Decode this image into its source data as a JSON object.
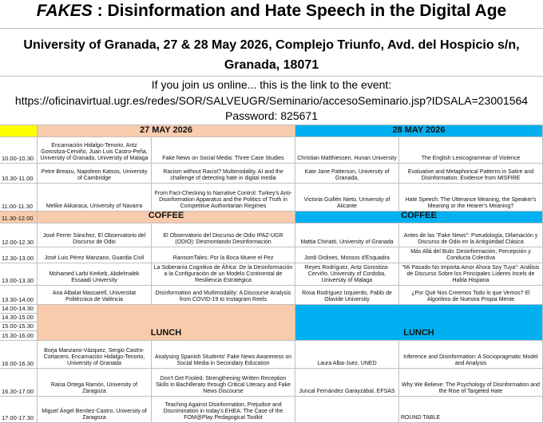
{
  "header": {
    "title_emphasis": "FAKES",
    "title": " : Disinformation and Hate Speech in the Digital Age",
    "venue": "University of Granada, 27 & 28 May 2026, Complejo Triunfo, Avd. del Hospicio s/n, Granada, 18071",
    "online": "If you join us online... this is the link to the event:",
    "link": "https://oficinavirtual.ugr.es/redes/SOR/SALVEUGR/Seminario/accesoSeminario.jsp?IDSALA=23001564",
    "password": "Password: 825671"
  },
  "schedule": {
    "days": [
      "27 MAY 2026",
      "28 MAY 2026"
    ],
    "rows": [
      {
        "time": "10.00-10.30",
        "sessions": [
          {
            "speaker": "Encarnación Hidalgo-Tenorio, Antz Gorostiza-Cerviño, Juan Luis Castro-Peña, University of Granada, University of Malaga",
            "title": "Fake News on Social Media: Three Case Studies"
          },
          {
            "speaker": "Christian Matthiessen, Hunan University",
            "title": "The English Lexicogrammar of Violence"
          }
        ]
      },
      {
        "time": "10.30-11.00",
        "sessions": [
          {
            "speaker": "Petre Breazu, Napoleon Katsos, University of Cambridge",
            "title": "Racism without Racist? Multimodality, AI and the challenge of detecting hate in digital media"
          },
          {
            "speaker": "Kate Jane Patterson, University of Granada,",
            "title": "Evaluative and Metaphorical Patterns in Satire and Disinformation: Evidence from MISFIRE"
          }
        ]
      },
      {
        "time": "11.00-11.30",
        "sessions": [
          {
            "speaker": "Melike Akkaraca, University of Navarra",
            "title": "From Fact-Checking to Narrative Control: Turkey's Anti-Disinformation Apparatus and the Politics of Truth in Competitive Authoritarian Regimes"
          },
          {
            "speaker": "Victoria Guillén Nieto, University of Alicante",
            "title": "Hate Speech: The Utterance Meaning, the Speaker's Meaning or the Hearer's Meaning?"
          }
        ]
      },
      {
        "times": [
          "11.30-12.00"
        ],
        "breaks": [
          "COFFEE",
          "COFFEE"
        ]
      },
      {
        "time": "12.00-12.30",
        "sessions": [
          {
            "speaker": "José Ferrer Sánchez, El Observatorio del Discurso de Odio",
            "title": "El Observatorio del Discurso de Odio IPAZ-UGR (ODIO): Desmontando Desinformación"
          },
          {
            "speaker": "Mattia Chiriatti, University of Granada",
            "title": "Antes de las \"Fake News\": Pseudología, Difamación y Discurso de Odio en la Antigüedad Clásica"
          }
        ]
      },
      {
        "time": "12.30-13.00",
        "sessions": [
          {
            "speaker": "José Luis Pérez Manzano, Guardia Civil",
            "title": "RansomTales: Por la Boca Muere el Pez"
          },
          {
            "speaker": "Jordi Ordines, Mossos d'Esquadra",
            "title": "Más Allá del Bulo: Desinformación, Percepción y Conducta Colectiva"
          }
        ]
      },
      {
        "time": "13.00-13.30",
        "sessions": [
          {
            "speaker": "Mohamed Larbi Kerkeb, Abdelmalek Essaadi University",
            "title": "La Soberanía Cognitiva de África: De la Desinformación a la Configuración de un Modelo Continental de Resiliencia Estratégica"
          },
          {
            "speaker": "Reyes Rodríguez, Antz Gorostiza-Cerviño, University of Cordoba, University of Malaga",
            "title": "\"Mi Pasado No Importa Amor Ahora Soy Tuya\": Análisis de Discurso Sobre los Principales Líderes Incels de Habla Hispana"
          }
        ]
      },
      {
        "time": "13.30-14.00",
        "sessions": [
          {
            "speaker": "Ana Albalat Mascarell, Universitat Politècnica de València",
            "title": "Disinformation and Multimodality: A Discourse Analysis from COVID-19 to Instagram Reels"
          },
          {
            "speaker": "Rosa Rodríguez Izquierdo, Pablo de Olavide University",
            "title": "¿Por Qué Nos Creemos Todo lo que Vemos? El Algoritmo de Nuestra Propia Mente"
          }
        ]
      },
      {
        "times": [
          "14.00-14.30",
          "14.30-15.00",
          "15.00-15.30",
          "15.30-16.00"
        ],
        "breaks": [
          "LUNCH",
          "LUNCH"
        ]
      },
      {
        "time": "16.00-16.30",
        "sessions": [
          {
            "speaker": "Borja Manzano-Vázquez, Sergio Castro-Cortacero, Encarnación Hidalgo-Tenorio, University of Granada",
            "title": "Analysing Spanish Students' Fake News Awareness on Social Media in Secondary Education"
          },
          {
            "speaker": "Laura Alba-Juez, UNED",
            "title": "Inference and Disinformation: A Sociopragmatic Model and Analysis"
          }
        ]
      },
      {
        "time": "16.30-17.00",
        "sessions": [
          {
            "speaker": "Raisa Ortega Ramón, University of Zaragoza",
            "title": "Don't Get Fooled: Strengthening Written Reception Skills in Bachillerato through Critical Literacy and Fake News Discourse"
          },
          {
            "speaker": "Juncal Fernández Garayzábal, EFSAS",
            "title": "Why We Believe: The Psychology of Disinformation and the Rise of Targeted Hate"
          }
        ]
      },
      {
        "time": "17.00-17.30",
        "sessions": [
          {
            "speaker": "Miguel Ángel Benítez-Castro, University of Zaragoza",
            "title": "Teaching Against Disinformation, Prejudice and Discrimination in today's EHEA: The Case of the FOM@Play Pedagogical Toolkit"
          },
          {
            "title": "ROUND TABLE"
          }
        ]
      }
    ]
  }
}
